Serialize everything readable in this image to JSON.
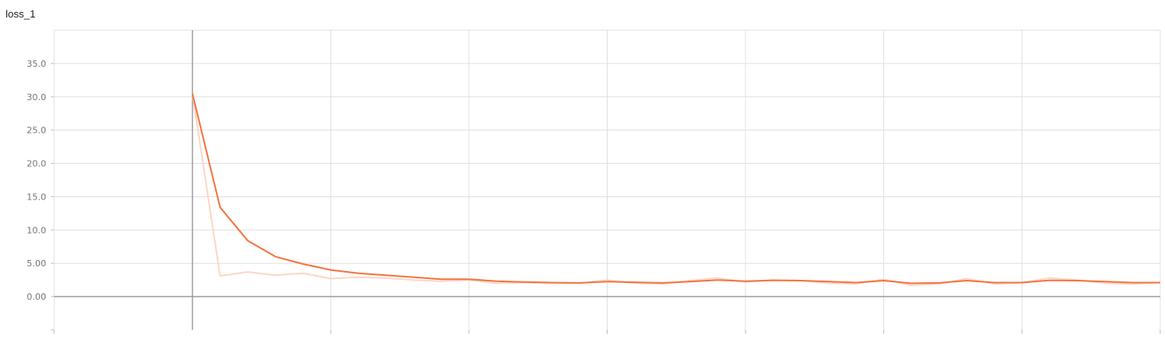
{
  "chart_data": {
    "type": "line",
    "title": "loss_1",
    "ylim": [
      -5,
      40
    ],
    "xlim": [
      -1,
      7
    ],
    "grid": true,
    "y_ticks": [
      {
        "value": 35,
        "label": "35.0"
      },
      {
        "value": 30,
        "label": "30.0"
      },
      {
        "value": 25,
        "label": "25.0"
      },
      {
        "value": 20,
        "label": "20.0"
      },
      {
        "value": 15,
        "label": "15.0"
      },
      {
        "value": 10,
        "label": "10.0"
      },
      {
        "value": 5,
        "label": "5.00"
      },
      {
        "value": 0,
        "label": "0.00"
      }
    ],
    "x_gridlines": [
      -1,
      0,
      1,
      2,
      3,
      4,
      5,
      6,
      7
    ],
    "colors": {
      "smoothed": "#f4733f",
      "raw": "#fcd6c6",
      "grid": "#e0e0e0",
      "axis": "#9e9e9e"
    },
    "series": [
      {
        "role": "smoothed",
        "x": [
          0,
          0.2,
          0.4,
          0.6,
          0.8,
          1.0,
          1.2,
          1.4,
          1.6,
          1.8,
          2.0,
          2.2,
          2.4,
          2.6,
          2.8,
          3.0,
          3.2,
          3.4,
          3.6,
          3.8,
          4.0,
          4.2,
          4.4,
          4.6,
          4.8,
          5.0,
          5.2,
          5.4,
          5.6,
          5.8,
          6.0,
          6.2,
          6.4,
          6.6,
          6.8,
          7.0
        ],
        "values": [
          30.5,
          13.4,
          8.4,
          6.0,
          4.9,
          4.0,
          3.5,
          3.2,
          2.9,
          2.6,
          2.6,
          2.3,
          2.2,
          2.1,
          2.05,
          2.25,
          2.15,
          2.05,
          2.25,
          2.5,
          2.3,
          2.45,
          2.4,
          2.25,
          2.1,
          2.4,
          2.0,
          2.05,
          2.4,
          2.1,
          2.1,
          2.45,
          2.4,
          2.25,
          2.1,
          2.1
        ]
      },
      {
        "role": "raw",
        "x": [
          0,
          0.2,
          0.4,
          0.6,
          0.8,
          1.0,
          1.2,
          1.4,
          1.6,
          1.8,
          2.0,
          2.2,
          2.4,
          2.6,
          2.8,
          3.0,
          3.2,
          3.4,
          3.6,
          3.8,
          4.0,
          4.2,
          4.4,
          4.6,
          4.8,
          5.0,
          5.2,
          5.4,
          5.6,
          5.8,
          6.0,
          6.2,
          6.4,
          6.6,
          6.8,
          7.0
        ],
        "values": [
          30.5,
          3.1,
          3.7,
          3.2,
          3.5,
          2.7,
          2.9,
          2.8,
          2.5,
          2.3,
          2.5,
          2.0,
          2.1,
          2.0,
          2.0,
          2.5,
          2.0,
          1.9,
          2.4,
          2.8,
          2.2,
          2.5,
          2.4,
          2.0,
          1.9,
          2.6,
          1.7,
          1.9,
          2.7,
          1.9,
          2.1,
          2.8,
          2.5,
          2.0,
          1.9,
          2.1
        ]
      }
    ]
  }
}
